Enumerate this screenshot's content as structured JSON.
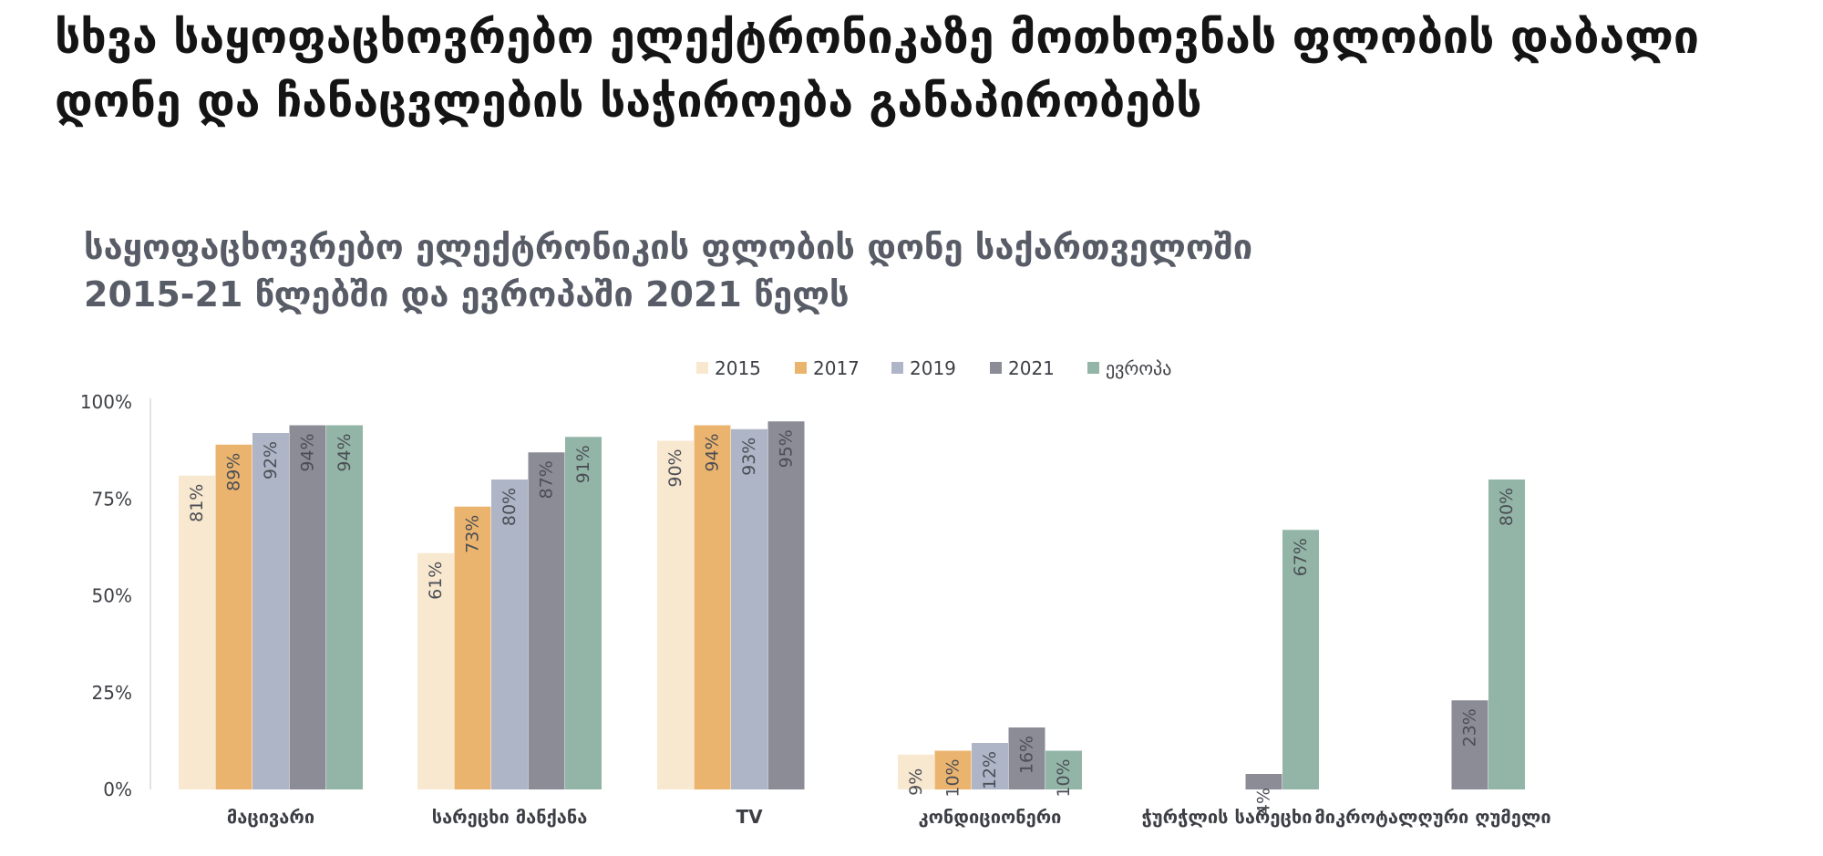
{
  "headline": "სხვა საყოფაცხოვრებო ელექტრონიკაზე მოთხოვნას ფლობის დაბალი დონე და ჩანაცვლების საჭიროება განაპირობებს",
  "chart_data": {
    "type": "bar",
    "title": "საყოფაცხოვრებო ელექტრონიკის ფლობის დონე საქართველოში 2015-21 წლებში და ევროპაში 2021 წელს",
    "xlabel": "",
    "ylabel": "",
    "ylim": [
      0,
      100
    ],
    "yticks": [
      "0%",
      "25%",
      "50%",
      "75%",
      "100%"
    ],
    "ytick_values": [
      0,
      25,
      50,
      75,
      100
    ],
    "grid": false,
    "legend_position": "top-center",
    "categories": [
      "მაცივარი",
      "სარეცხი მანქანა",
      "TV",
      "კონდიციონერი",
      "ჭურჭლის სარეცხი",
      "მიკროტალღური ღუმელი"
    ],
    "series": [
      {
        "name": "2015",
        "color": "#f8e8d0",
        "values": [
          81,
          61,
          90,
          9,
          null,
          null
        ]
      },
      {
        "name": "2017",
        "color": "#ebb46e",
        "values": [
          89,
          73,
          94,
          10,
          null,
          null
        ]
      },
      {
        "name": "2019",
        "color": "#adb5c6",
        "values": [
          92,
          80,
          93,
          12,
          null,
          null
        ]
      },
      {
        "name": "2021",
        "color": "#8b8c95",
        "values": [
          94,
          87,
          95,
          16,
          4,
          23
        ]
      },
      {
        "name": "ევროპა",
        "color": "#93b5a7",
        "values": [
          94,
          91,
          null,
          10,
          67,
          80
        ]
      }
    ],
    "value_suffix": "%"
  }
}
